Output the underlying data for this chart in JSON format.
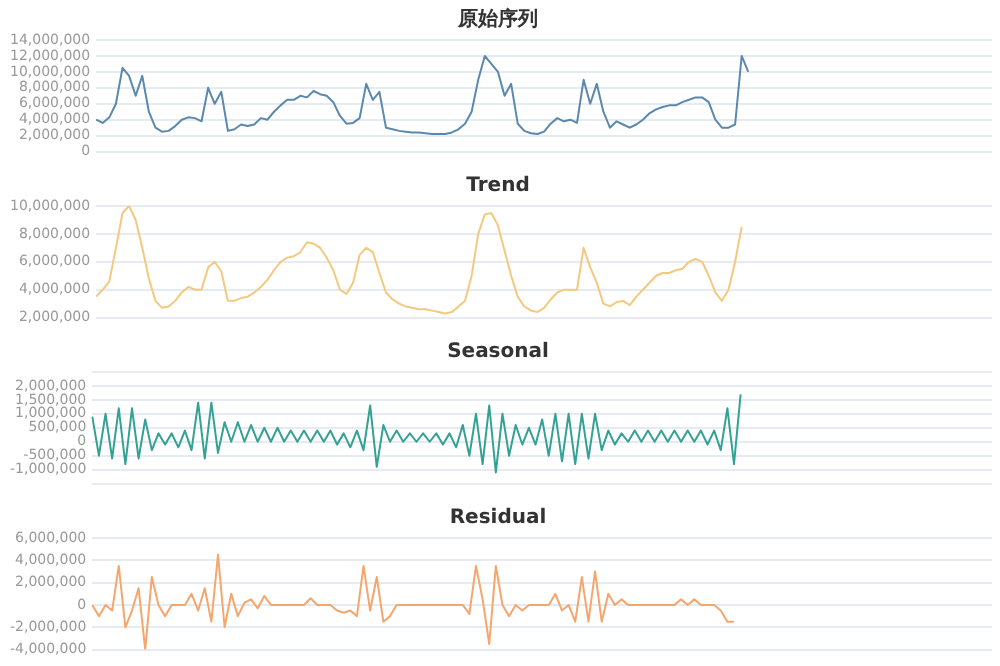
{
  "chart_data": [
    {
      "type": "line",
      "title": "原始序列",
      "categories": [
        null,
        null,
        null,
        null,
        null,
        null,
        null,
        null,
        null,
        null,
        null,
        null,
        null,
        null,
        null,
        null,
        null,
        null,
        null,
        null,
        null,
        null,
        null,
        null,
        null,
        null,
        null,
        null,
        null,
        null,
        null,
        null,
        null,
        null,
        null,
        null,
        null,
        null,
        null,
        null,
        null,
        null,
        null,
        null,
        null,
        null,
        null,
        null,
        null,
        null,
        null,
        null,
        null,
        null,
        null,
        null,
        null,
        null,
        null,
        null,
        null,
        null,
        null,
        null,
        null,
        null,
        null,
        null,
        null,
        null,
        null,
        null,
        null,
        null,
        null,
        null,
        null,
        null,
        null,
        null,
        null,
        null,
        null,
        null,
        null,
        null,
        null,
        null,
        null,
        null,
        null,
        null,
        null,
        null,
        null,
        null,
        null,
        null,
        null,
        null,
        null,
        null,
        null,
        null,
        null,
        null,
        null,
        null,
        null,
        null,
        null,
        null,
        null,
        null,
        null,
        null,
        null,
        null,
        null,
        null,
        null,
        null,
        null,
        null,
        null,
        null,
        null,
        null,
        null,
        null,
        null,
        null,
        null,
        null,
        null,
        null,
        null
      ],
      "series": [
        {
          "color": "#5b88ad",
          "values": [
            4000000,
            3600000,
            4300000,
            6000000,
            10500000,
            9500000,
            7000000,
            9500000,
            5000000,
            3000000,
            2500000,
            2600000,
            3200000,
            4000000,
            4300000,
            4200000,
            3800000,
            8000000,
            6000000,
            7500000,
            2600000,
            2800000,
            3400000,
            3200000,
            3400000,
            4200000,
            4000000,
            5000000,
            5800000,
            6500000,
            6500000,
            7000000,
            6800000,
            7600000,
            7200000,
            7000000,
            6200000,
            4500000,
            3500000,
            3600000,
            4200000,
            8500000,
            6500000,
            7500000,
            3000000,
            2800000,
            2600000,
            2500000,
            2400000,
            2400000,
            2300000,
            2200000,
            2200000,
            2200000,
            2400000,
            2800000,
            3500000,
            5000000,
            9000000,
            12000000,
            11000000,
            10000000,
            7000000,
            8500000,
            3500000,
            2600000,
            2300000,
            2200000,
            2500000,
            3500000,
            4200000,
            3800000,
            4000000,
            3600000,
            9000000,
            6000000,
            8500000,
            5000000,
            3000000,
            3800000,
            3400000,
            3000000,
            3400000,
            4000000,
            4800000,
            5300000,
            5600000,
            5800000,
            5800000,
            6200000,
            6500000,
            6800000,
            6800000,
            6200000,
            4000000,
            3000000,
            3000000,
            3400000,
            12000000,
            10000000,
            null,
            null,
            null,
            null,
            null,
            null,
            null,
            null,
            null,
            null,
            null,
            null,
            null,
            null,
            null,
            null,
            null,
            null,
            null,
            null,
            null,
            null,
            null,
            null,
            null,
            null,
            null,
            null,
            null,
            null,
            null,
            null,
            null,
            null,
            null,
            null,
            null
          ]
        }
      ],
      "ylim": [
        0,
        14000000
      ],
      "yticks": [
        {
          "value": 0,
          "label": "0"
        },
        {
          "value": 2000000,
          "label": "2,000,000"
        },
        {
          "value": 4000000,
          "label": "4,000,000"
        },
        {
          "value": 6000000,
          "label": "6,000,000"
        },
        {
          "value": 8000000,
          "label": "8,000,000"
        },
        {
          "value": 10000000,
          "label": "10,000,000"
        },
        {
          "value": 12000000,
          "label": "12,000,000"
        },
        {
          "value": 14000000,
          "label": "14,000,000"
        }
      ],
      "grid": "y",
      "legend": false,
      "marker": "none",
      "tick_labels": "y"
    },
    {
      "type": "line",
      "title": "Trend",
      "categories": [
        null,
        null,
        null,
        null,
        null,
        null,
        null,
        null,
        null,
        null,
        null,
        null,
        null,
        null,
        null,
        null,
        null,
        null,
        null,
        null,
        null,
        null,
        null,
        null,
        null,
        null,
        null,
        null,
        null,
        null,
        null,
        null,
        null,
        null,
        null,
        null,
        null,
        null,
        null,
        null,
        null,
        null,
        null,
        null,
        null,
        null,
        null,
        null,
        null,
        null,
        null,
        null,
        null,
        null,
        null,
        null,
        null,
        null,
        null,
        null,
        null,
        null,
        null,
        null,
        null,
        null,
        null,
        null,
        null,
        null,
        null,
        null,
        null,
        null,
        null,
        null,
        null,
        null,
        null,
        null,
        null,
        null,
        null,
        null,
        null,
        null,
        null,
        null,
        null,
        null,
        null,
        null,
        null,
        null,
        null,
        null,
        null,
        null,
        null,
        null,
        null,
        null,
        null,
        null,
        null,
        null,
        null,
        null,
        null,
        null,
        null,
        null,
        null,
        null,
        null,
        null,
        null,
        null,
        null,
        null,
        null,
        null,
        null,
        null,
        null,
        null,
        null,
        null,
        null,
        null,
        null,
        null,
        null,
        null,
        null,
        null,
        null
      ],
      "series": [
        {
          "color": "#f3c97f",
          "values": [
            3500000,
            4000000,
            4600000,
            7000000,
            9500000,
            10000000,
            9000000,
            7000000,
            4800000,
            3200000,
            2700000,
            2800000,
            3200000,
            3800000,
            4200000,
            4000000,
            4000000,
            5600000,
            6000000,
            5300000,
            3200000,
            3200000,
            3400000,
            3500000,
            3800000,
            4200000,
            4700000,
            5400000,
            6000000,
            6300000,
            6400000,
            6700000,
            7400000,
            7300000,
            7000000,
            6300000,
            5400000,
            4000000,
            3700000,
            4500000,
            6500000,
            7000000,
            6700000,
            5200000,
            3800000,
            3300000,
            3000000,
            2800000,
            2700000,
            2600000,
            2600000,
            2500000,
            2400000,
            2300000,
            2400000,
            2800000,
            3200000,
            5000000,
            8000000,
            9400000,
            9500000,
            8600000,
            6800000,
            5000000,
            3500000,
            2800000,
            2500000,
            2400000,
            2700000,
            3300000,
            3800000,
            4000000,
            4000000,
            4000000,
            7000000,
            5600000,
            4500000,
            3000000,
            2800000,
            3100000,
            3200000,
            2900000,
            3500000,
            4000000,
            4500000,
            5000000,
            5200000,
            5200000,
            5400000,
            5500000,
            6000000,
            6200000,
            6000000,
            5000000,
            3800000,
            3200000,
            4000000,
            6000000,
            8500000,
            null,
            null,
            null,
            null,
            null,
            null,
            null,
            null,
            null,
            null,
            null,
            null,
            null,
            null,
            null,
            null,
            null,
            null,
            null,
            null,
            null,
            null,
            null,
            null,
            null,
            null,
            null,
            null,
            null,
            null,
            null,
            null,
            null,
            null,
            null,
            null,
            null,
            null
          ]
        }
      ],
      "ylim": [
        2000000,
        10000000
      ],
      "yticks": [
        {
          "value": 2000000,
          "label": "2,000,000"
        },
        {
          "value": 4000000,
          "label": "4,000,000"
        },
        {
          "value": 6000000,
          "label": "6,000,000"
        },
        {
          "value": 8000000,
          "label": "8,000,000"
        },
        {
          "value": 10000000,
          "label": "10,000,000"
        }
      ],
      "grid": "y",
      "legend": false,
      "marker": "none",
      "tick_labels": "y"
    },
    {
      "type": "line",
      "title": "Seasonal",
      "categories": [
        null,
        null,
        null,
        null,
        null,
        null,
        null,
        null,
        null,
        null,
        null,
        null,
        null,
        null,
        null,
        null,
        null,
        null,
        null,
        null,
        null,
        null,
        null,
        null,
        null,
        null,
        null,
        null,
        null,
        null,
        null,
        null,
        null,
        null,
        null,
        null,
        null,
        null,
        null,
        null,
        null,
        null,
        null,
        null,
        null,
        null,
        null,
        null,
        null,
        null,
        null,
        null,
        null,
        null,
        null,
        null,
        null,
        null,
        null,
        null,
        null,
        null,
        null,
        null,
        null,
        null,
        null,
        null,
        null,
        null,
        null,
        null,
        null,
        null,
        null,
        null,
        null,
        null,
        null,
        null,
        null,
        null,
        null,
        null,
        null,
        null,
        null,
        null,
        null,
        null,
        null,
        null,
        null,
        null,
        null,
        null,
        null,
        null,
        null,
        null,
        null,
        null,
        null,
        null,
        null,
        null,
        null,
        null,
        null,
        null,
        null,
        null,
        null,
        null,
        null,
        null,
        null,
        null,
        null,
        null,
        null,
        null,
        null,
        null,
        null,
        null,
        null,
        null,
        null,
        null,
        null,
        null,
        null,
        null,
        null,
        null,
        null
      ],
      "series": [
        {
          "color": "#33a193",
          "values": [
            900000,
            -500000,
            1000000,
            -600000,
            1200000,
            -800000,
            1200000,
            -600000,
            800000,
            -300000,
            300000,
            -100000,
            300000,
            -200000,
            400000,
            -300000,
            1400000,
            -600000,
            1400000,
            -400000,
            700000,
            0,
            700000,
            0,
            600000,
            0,
            500000,
            0,
            500000,
            0,
            400000,
            0,
            400000,
            0,
            400000,
            0,
            400000,
            -100000,
            300000,
            -200000,
            400000,
            -300000,
            1300000,
            -900000,
            600000,
            0,
            400000,
            0,
            300000,
            0,
            300000,
            0,
            300000,
            -100000,
            300000,
            -200000,
            600000,
            -500000,
            1000000,
            -800000,
            1300000,
            -1100000,
            1000000,
            -500000,
            600000,
            -100000,
            500000,
            -100000,
            800000,
            -500000,
            1000000,
            -700000,
            1000000,
            -800000,
            1000000,
            -600000,
            1000000,
            -300000,
            400000,
            -100000,
            300000,
            0,
            400000,
            0,
            400000,
            0,
            400000,
            0,
            400000,
            0,
            400000,
            0,
            400000,
            -100000,
            400000,
            -300000,
            1200000,
            -800000,
            1700000,
            null,
            null,
            null,
            null,
            null,
            null,
            null,
            null,
            null,
            null,
            null,
            null,
            null,
            null,
            null,
            null,
            null,
            null,
            null,
            null,
            null,
            null,
            null,
            null,
            null,
            null,
            null,
            null,
            null,
            null,
            null,
            null,
            null,
            null,
            null,
            null,
            null,
            null
          ]
        }
      ],
      "ylim": [
        -1500000,
        2500000
      ],
      "yticks": [
        {
          "value": -1500000,
          "label": null
        },
        {
          "value": -1000000,
          "label": "-1,000,000"
        },
        {
          "value": -500000,
          "label": "-500,000"
        },
        {
          "value": 0,
          "label": "0"
        },
        {
          "value": 500000,
          "label": "500,000"
        },
        {
          "value": 1000000,
          "label": "1,000,000"
        },
        {
          "value": 1500000,
          "label": "1,500,000"
        },
        {
          "value": 2000000,
          "label": "2,000,000"
        },
        {
          "value": 2500000,
          "label": null
        }
      ],
      "grid": "y",
      "legend": false,
      "marker": "none",
      "tick_labels": "y"
    },
    {
      "type": "line",
      "title": "Residual",
      "categories": [
        null,
        null,
        null,
        null,
        null,
        null,
        null,
        null,
        null,
        null,
        null,
        null,
        null,
        null,
        null,
        null,
        null,
        null,
        null,
        null,
        null,
        null,
        null,
        null,
        null,
        null,
        null,
        null,
        null,
        null,
        null,
        null,
        null,
        null,
        null,
        null,
        null,
        null,
        null,
        null,
        null,
        null,
        null,
        null,
        null,
        null,
        null,
        null,
        null,
        null,
        null,
        null,
        null,
        null,
        null,
        null,
        null,
        null,
        null,
        null,
        null,
        null,
        null,
        null,
        null,
        null,
        null,
        null,
        null,
        null,
        null,
        null,
        null,
        null,
        null,
        null,
        null,
        null,
        null,
        null,
        null,
        null,
        null,
        null,
        null,
        null,
        null,
        null,
        null,
        null,
        null,
        null,
        null,
        null,
        null,
        null,
        null,
        null,
        null,
        null,
        null,
        null,
        null,
        null,
        null,
        null,
        null,
        null,
        null,
        null,
        null,
        null,
        null,
        null,
        null,
        null,
        null,
        null,
        null,
        null,
        null,
        null,
        null,
        null,
        null,
        null,
        null,
        null,
        null,
        null,
        null,
        null,
        null,
        null,
        null,
        null,
        null
      ],
      "series": [
        {
          "color": "#f5a66c",
          "values": [
            0,
            -1000000,
            0,
            -500000,
            3500000,
            -2000000,
            -500000,
            1500000,
            -4000000,
            2500000,
            0,
            -1000000,
            0,
            0,
            0,
            1000000,
            -500000,
            1500000,
            -1500000,
            4500000,
            -2000000,
            1000000,
            -1000000,
            200000,
            500000,
            -300000,
            800000,
            0,
            0,
            0,
            0,
            0,
            0,
            600000,
            0,
            0,
            0,
            -500000,
            -700000,
            -500000,
            -1000000,
            3500000,
            -500000,
            2500000,
            -1500000,
            -1000000,
            0,
            0,
            0,
            0,
            0,
            0,
            0,
            0,
            0,
            0,
            0,
            -800000,
            3500000,
            500000,
            -3500000,
            3500000,
            0,
            -1000000,
            0,
            -500000,
            0,
            0,
            0,
            0,
            1000000,
            -500000,
            0,
            -1500000,
            2500000,
            -1500000,
            3000000,
            -1500000,
            1000000,
            0,
            500000,
            0,
            0,
            0,
            0,
            0,
            0,
            0,
            0,
            500000,
            0,
            500000,
            0,
            0,
            0,
            -500000,
            -1500000,
            -1500000,
            null,
            null,
            null,
            null,
            null,
            null,
            null,
            null,
            null,
            null,
            null,
            null,
            null,
            null,
            null,
            null,
            null,
            null,
            null,
            null,
            null,
            null,
            null,
            null,
            null,
            null,
            null,
            null,
            null,
            null,
            null,
            null,
            null,
            null,
            null,
            null,
            null,
            null,
            null
          ]
        }
      ],
      "ylim": [
        -4000000,
        6000000
      ],
      "yticks": [
        {
          "value": -4000000,
          "label": "-4,000,000"
        },
        {
          "value": -2000000,
          "label": "-2,000,000"
        },
        {
          "value": 0,
          "label": "0"
        },
        {
          "value": 2000000,
          "label": "2,000,000"
        },
        {
          "value": 4000000,
          "label": "4,000,000"
        },
        {
          "value": 6000000,
          "label": "6,000,000"
        }
      ],
      "grid": "y",
      "legend": false,
      "marker": "none",
      "tick_labels": "y"
    }
  ]
}
